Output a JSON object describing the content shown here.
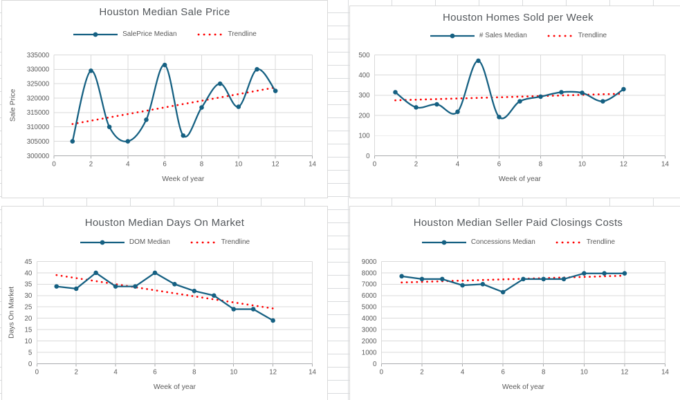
{
  "sheet": {
    "type": "excel-worksheet",
    "gridlines_visible": true
  },
  "palette": {
    "series_line": "#156082",
    "trendline": "#FF0000",
    "plot_gridline": "#D9D9D9",
    "axis_line": "#A9ABAD",
    "tick_text": "#595959",
    "title_text": "#53575B",
    "panel_border": "#D9D9D9",
    "sheet_gridline": "#D9DBDD"
  },
  "chart_data": [
    {
      "type": "line",
      "title": "Houston Median Sale Price",
      "xlabel": "Week of year",
      "ylabel": "Sale Price",
      "x": [
        1,
        2,
        3,
        4,
        5,
        6,
        7,
        8,
        9,
        10,
        11,
        12
      ],
      "series": [
        {
          "name": "SalePrice Median",
          "line_style": "smooth",
          "values": [
            305000,
            329500,
            310000,
            305000,
            312500,
            331500,
            307000,
            316750,
            325000,
            317000,
            330000,
            322500
          ]
        }
      ],
      "trendline": {
        "name": "Trendline",
        "style": "round-dot",
        "start": 311000,
        "end": 323700
      },
      "xlim": [
        0,
        14
      ],
      "xstep": 2,
      "ylim": [
        300000,
        335000
      ],
      "ystep": 5000,
      "grid": true,
      "legend_position": "top"
    },
    {
      "type": "line",
      "title": "Houston Homes Sold per Week",
      "xlabel": "Week of year",
      "ylabel": "",
      "x": [
        1,
        2,
        3,
        4,
        5,
        6,
        7,
        8,
        9,
        10,
        11,
        12
      ],
      "series": [
        {
          "name": "# Sales Median",
          "line_style": "smooth",
          "values": [
            315,
            240,
            255,
            218,
            471,
            192,
            270,
            293,
            315,
            312,
            270,
            330
          ]
        }
      ],
      "trendline": {
        "name": "Trendline",
        "style": "round-dot",
        "start": 275,
        "end": 308
      },
      "xlim": [
        0,
        14
      ],
      "xstep": 2,
      "ylim": [
        0,
        500
      ],
      "ystep": 100,
      "grid": true,
      "legend_position": "top"
    },
    {
      "type": "line",
      "title": "Houston Median Days On Market",
      "xlabel": "Week of year",
      "ylabel": "Days On Market",
      "x": [
        1,
        2,
        3,
        4,
        5,
        6,
        7,
        8,
        9,
        10,
        11,
        12
      ],
      "series": [
        {
          "name": "DOM Median",
          "line_style": "straight",
          "values": [
            34,
            33,
            40,
            34,
            34,
            40,
            35,
            32,
            30,
            24,
            24,
            19
          ]
        }
      ],
      "trendline": {
        "name": "Trendline",
        "style": "round-dot",
        "start": 39,
        "end": 24.3
      },
      "xlim": [
        0,
        14
      ],
      "xstep": 2,
      "ylim": [
        0,
        45
      ],
      "ystep": 5,
      "grid": true,
      "legend_position": "top"
    },
    {
      "type": "line",
      "title": "Houston Median Seller Paid Closings Costs",
      "xlabel": "Week of year",
      "ylabel": "",
      "x": [
        1,
        2,
        3,
        4,
        5,
        6,
        7,
        8,
        9,
        10,
        11,
        12
      ],
      "series": [
        {
          "name": "Concessions Median",
          "line_style": "straight",
          "values": [
            7700,
            7450,
            7450,
            6900,
            7000,
            6300,
            7450,
            7450,
            7450,
            7950,
            7950,
            7950
          ]
        }
      ],
      "trendline": {
        "name": "Trendline",
        "style": "round-dot",
        "start": 7150,
        "end": 7750
      },
      "xlim": [
        0,
        14
      ],
      "xstep": 2,
      "ylim": [
        0,
        9000
      ],
      "ystep": 1000,
      "grid": true,
      "legend_position": "top"
    }
  ]
}
